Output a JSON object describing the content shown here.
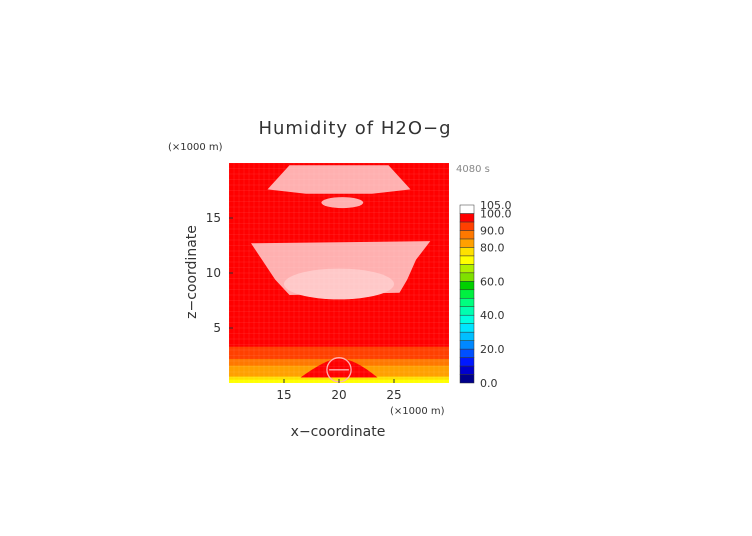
{
  "chart_data": {
    "type": "heatmap",
    "title": "Humidity of H2O−g",
    "time_label": "4080 s",
    "xlabel": "x−coordinate",
    "ylabel": "z−coordinate",
    "x_unit": "(×1000 m)",
    "z_unit": "(×1000 m)",
    "xlim": [
      10,
      30
    ],
    "zlim": [
      0,
      20
    ],
    "x_ticks": [
      15,
      20,
      25
    ],
    "z_ticks": [
      5,
      10,
      15
    ],
    "colorbar": {
      "levels": [
        0,
        5,
        10,
        15,
        20,
        25,
        30,
        35,
        40,
        45,
        50,
        55,
        60,
        65,
        70,
        75,
        80,
        85,
        90,
        95,
        100,
        105
      ],
      "colors": [
        "#00008b",
        "#0000cd",
        "#0018ff",
        "#0050ff",
        "#0088ff",
        "#00bfff",
        "#00e5ff",
        "#00ffe0",
        "#00ffb0",
        "#00ff7f",
        "#00f040",
        "#00d000",
        "#7fe000",
        "#b0f000",
        "#ffff00",
        "#ffe000",
        "#ffa000",
        "#ff7800",
        "#ff4000",
        "#ff0000",
        "#ffffff"
      ],
      "tick_labels": [
        "0.0",
        "20.0",
        "40.0",
        "60.0",
        "80.0",
        "90.0",
        "100.0",
        "105.0"
      ],
      "tick_values": [
        0,
        20,
        40,
        60,
        80,
        90,
        100,
        105
      ]
    },
    "field_description_levels": {
      "background": 97,
      "saturated_regions": 101
    },
    "regions": [
      {
        "level": 101,
        "z_range": [
          17.5,
          19.8
        ],
        "x_range": [
          15.5,
          24.5
        ],
        "shape": "band"
      },
      {
        "level": 101,
        "z_range": [
          16.1,
          16.7
        ],
        "x_range": [
          18.5,
          22.2
        ],
        "shape": "ellipse"
      },
      {
        "level": 101,
        "z_range": [
          8.0,
          12.9
        ],
        "x_range": [
          12.0,
          28.0
        ],
        "shape": "tapered"
      },
      {
        "level": 85,
        "z_range": [
          0.0,
          3.3
        ],
        "x_range": [
          10,
          30
        ],
        "shape": "band"
      },
      {
        "level": 75,
        "z_range": [
          0.0,
          1.2
        ],
        "x_range": [
          10,
          30
        ],
        "shape": "band"
      },
      {
        "level": 100,
        "z_range": [
          0.2,
          2.0
        ],
        "x_range": [
          18.2,
          21.5
        ],
        "shape": "cell"
      }
    ]
  }
}
